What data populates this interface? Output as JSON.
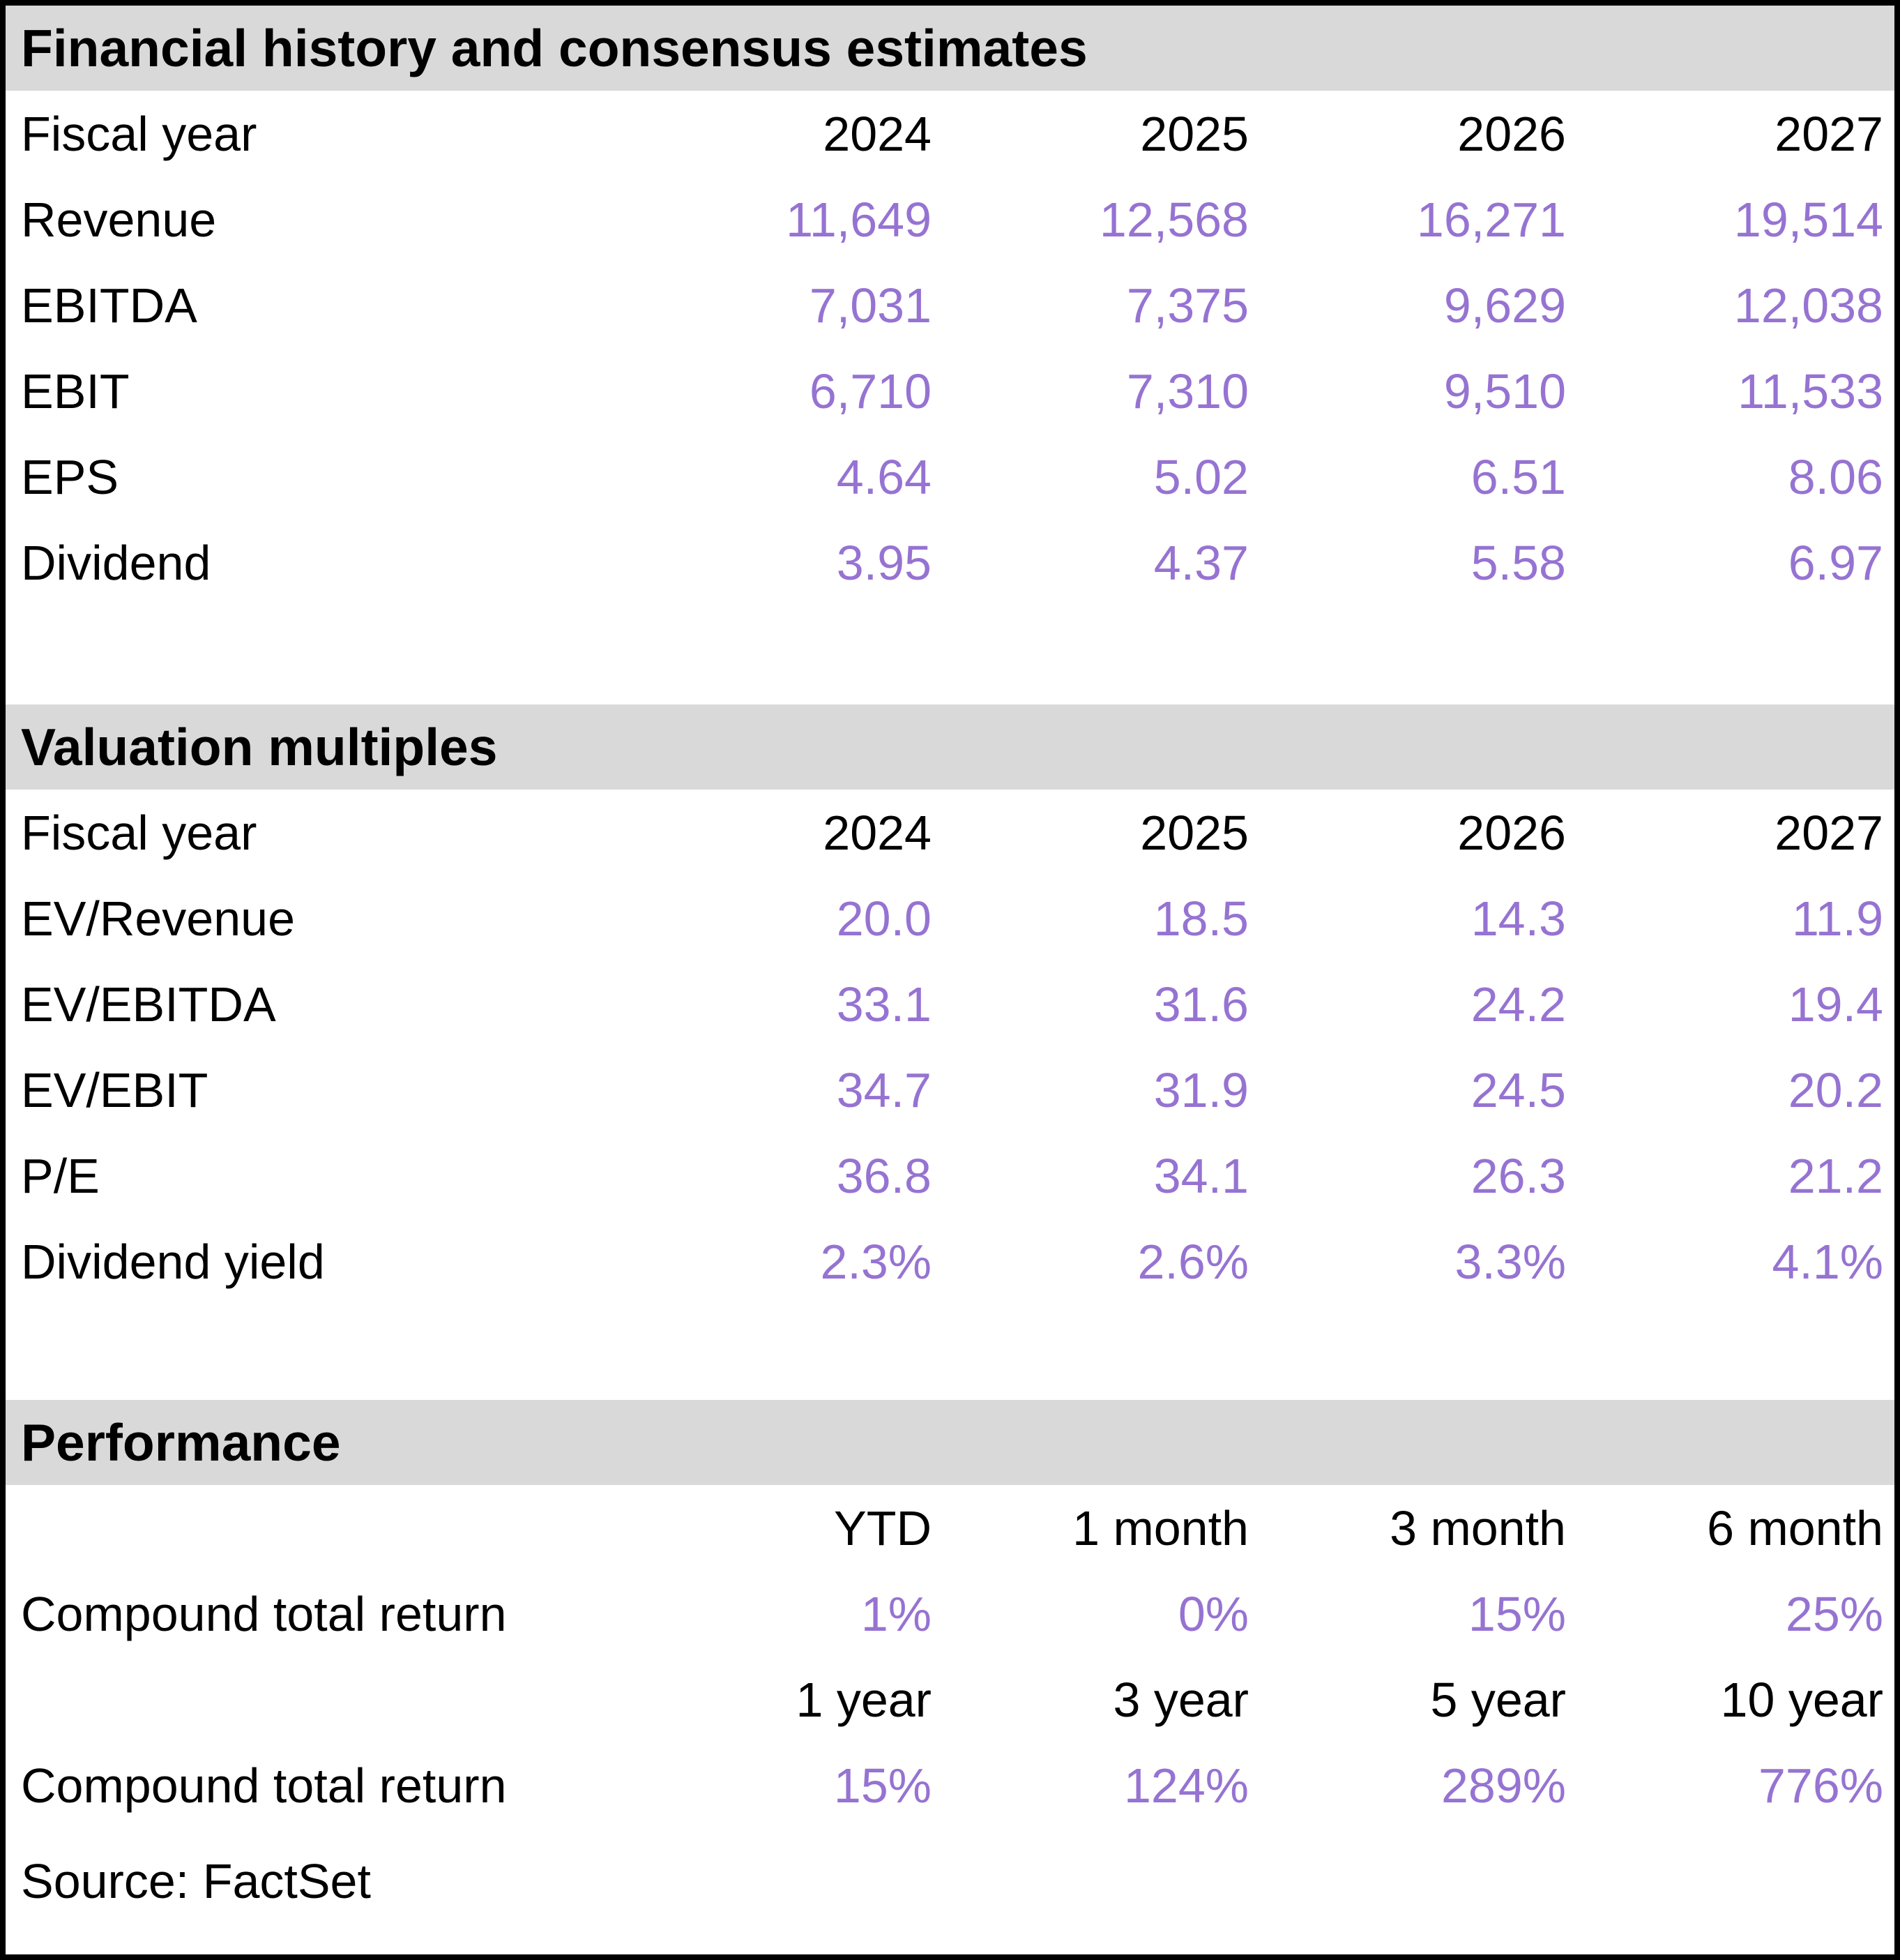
{
  "colors": {
    "accent_purple": "#9673D2",
    "section_header_bg": "#D9D9D9",
    "text": "#000000",
    "border": "#000000"
  },
  "sections": [
    {
      "title": "Financial history and consensus estimates",
      "header_row": {
        "label": "Fiscal year",
        "cols": [
          "2024",
          "2025",
          "2026",
          "2027"
        ]
      },
      "rows": [
        {
          "label": "Revenue",
          "values": [
            "11,649",
            "12,568",
            "16,271",
            "19,514"
          ]
        },
        {
          "label": "EBITDA",
          "values": [
            "7,031",
            "7,375",
            "9,629",
            "12,038"
          ]
        },
        {
          "label": "EBIT",
          "values": [
            "6,710",
            "7,310",
            "9,510",
            "11,533"
          ]
        },
        {
          "label": "EPS",
          "values": [
            "4.64",
            "5.02",
            "6.51",
            "8.06"
          ]
        },
        {
          "label": "Dividend",
          "values": [
            "3.95",
            "4.37",
            "5.58",
            "6.97"
          ]
        }
      ]
    },
    {
      "title": "Valuation multiples",
      "header_row": {
        "label": "Fiscal year",
        "cols": [
          "2024",
          "2025",
          "2026",
          "2027"
        ]
      },
      "rows": [
        {
          "label": "EV/Revenue",
          "values": [
            "20.0",
            "18.5",
            "14.3",
            "11.9"
          ]
        },
        {
          "label": "EV/EBITDA",
          "values": [
            "33.1",
            "31.6",
            "24.2",
            "19.4"
          ]
        },
        {
          "label": "EV/EBIT",
          "values": [
            "34.7",
            "31.9",
            "24.5",
            "20.2"
          ]
        },
        {
          "label": "P/E",
          "values": [
            "36.8",
            "34.1",
            "26.3",
            "21.2"
          ]
        },
        {
          "label": "Dividend yield",
          "values": [
            "2.3%",
            "2.6%",
            "3.3%",
            "4.1%"
          ]
        }
      ]
    },
    {
      "title": "Performance",
      "groups": [
        {
          "header": {
            "label": "",
            "cols": [
              "YTD",
              "1 month",
              "3 month",
              "6 month"
            ]
          },
          "row": {
            "label": "Compound total return",
            "values": [
              "1%",
              "0%",
              "15%",
              "25%"
            ]
          }
        },
        {
          "header": {
            "label": "",
            "cols": [
              "1 year",
              "3 year",
              "5 year",
              "10 year"
            ]
          },
          "row": {
            "label": "Compound total return",
            "values": [
              "15%",
              "124%",
              "289%",
              "776%"
            ]
          }
        }
      ]
    }
  ],
  "footer": {
    "source": "Source: FactSet"
  },
  "chart_data": [
    {
      "type": "table",
      "title": "Financial history and consensus estimates",
      "columns": [
        "Fiscal year",
        "2024",
        "2025",
        "2026",
        "2027"
      ],
      "rows": [
        [
          "Revenue",
          "11,649",
          "12,568",
          "16,271",
          "19,514"
        ],
        [
          "EBITDA",
          "7,031",
          "7,375",
          "9,629",
          "12,038"
        ],
        [
          "EBIT",
          "6,710",
          "7,310",
          "9,510",
          "11,533"
        ],
        [
          "EPS",
          "4.64",
          "5.02",
          "6.51",
          "8.06"
        ],
        [
          "Dividend",
          "3.95",
          "4.37",
          "5.58",
          "6.97"
        ]
      ]
    },
    {
      "type": "table",
      "title": "Valuation multiples",
      "columns": [
        "Fiscal year",
        "2024",
        "2025",
        "2026",
        "2027"
      ],
      "rows": [
        [
          "EV/Revenue",
          "20.0",
          "18.5",
          "14.3",
          "11.9"
        ],
        [
          "EV/EBITDA",
          "33.1",
          "31.6",
          "24.2",
          "19.4"
        ],
        [
          "EV/EBIT",
          "34.7",
          "31.9",
          "24.5",
          "20.2"
        ],
        [
          "P/E",
          "36.8",
          "34.1",
          "26.3",
          "21.2"
        ],
        [
          "Dividend yield",
          "2.3%",
          "2.6%",
          "3.3%",
          "4.1%"
        ]
      ]
    },
    {
      "type": "table",
      "title": "Performance",
      "columns": [
        "",
        "YTD",
        "1 month",
        "3 month",
        "6 month"
      ],
      "rows": [
        [
          "Compound total return",
          "1%",
          "0%",
          "15%",
          "25%"
        ]
      ],
      "columns_2": [
        "",
        "1 year",
        "3 year",
        "5 year",
        "10 year"
      ],
      "rows_2": [
        [
          "Compound total return",
          "15%",
          "124%",
          "289%",
          "776%"
        ]
      ]
    }
  ]
}
